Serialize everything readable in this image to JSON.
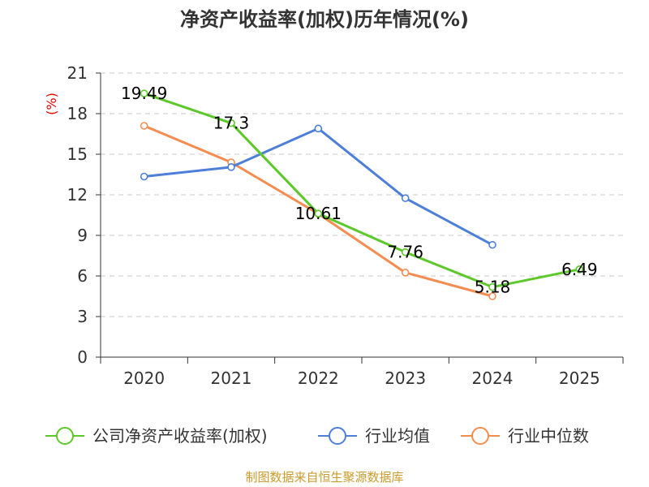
{
  "chart_data": {
    "type": "line",
    "title": "净资产收益率(加权)历年情况(%)",
    "ylabel": "(%)",
    "xlabel": "",
    "ylim": [
      0,
      21
    ],
    "yticks": [
      0,
      3,
      6,
      9,
      12,
      15,
      18,
      21
    ],
    "categories": [
      "2020",
      "2021",
      "2022",
      "2023",
      "2024",
      "2025"
    ],
    "series": [
      {
        "name": "公司净资产收益率(加权)",
        "color": "#5cc82a",
        "values": [
          19.49,
          17.3,
          10.61,
          7.76,
          5.18,
          6.49
        ],
        "labels": [
          "19.49",
          "17.3",
          "10.61",
          "7.76",
          "5.18",
          "6.49"
        ]
      },
      {
        "name": "行业均值",
        "color": "#4e7fd8",
        "values": [
          13.35,
          14.05,
          16.9,
          11.75,
          8.3,
          null
        ]
      },
      {
        "name": "行业中位数",
        "color": "#f58c50",
        "values": [
          17.1,
          14.4,
          10.6,
          6.25,
          4.5,
          null
        ]
      }
    ],
    "grid": true,
    "legend_position": "bottom",
    "source": "制图数据来自恒生聚源数据库"
  }
}
